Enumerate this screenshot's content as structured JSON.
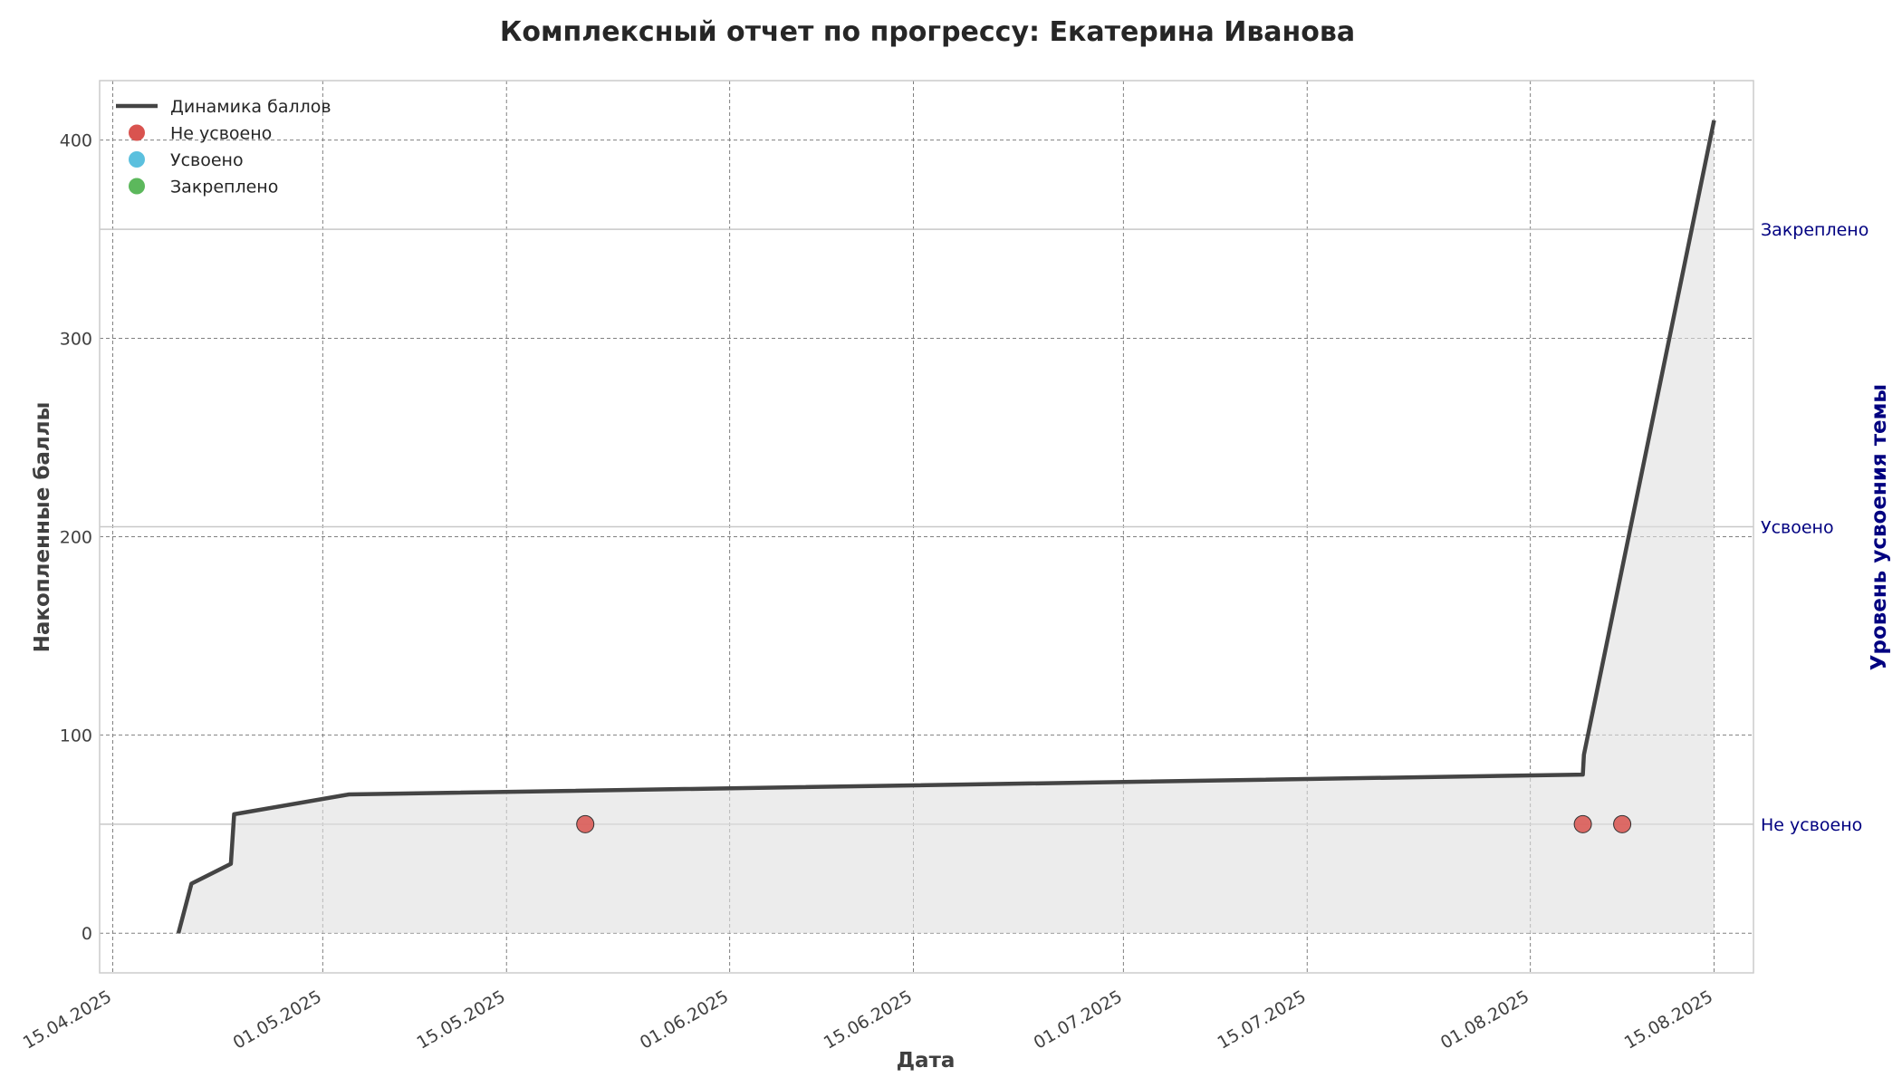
{
  "chart_data": {
    "type": "line",
    "title": "Комплексный отчет по прогрессу: Екатерина Иванова",
    "xlabel": "Дата",
    "ylabel": "Накопленные баллы",
    "y2label": "Уровень усвоения темы",
    "xlim": [
      "2025-04-14",
      "2025-08-18"
    ],
    "ylim": [
      -20,
      430
    ],
    "grid": true,
    "legend_position": "top-left",
    "x_ticks": [
      "15.04.2025",
      "01.05.2025",
      "15.05.2025",
      "01.06.2025",
      "15.06.2025",
      "01.07.2025",
      "15.07.2025",
      "01.08.2025",
      "15.08.2025"
    ],
    "y_ticks": [
      0,
      100,
      200,
      300,
      400
    ],
    "y2_levels": [
      {
        "label": "Не усвоено",
        "y": 55
      },
      {
        "label": "Усвоено",
        "y": 205
      },
      {
        "label": "Закреплено",
        "y": 355
      }
    ],
    "series": [
      {
        "name": "Динамика баллов",
        "kind": "line",
        "color": "#444444",
        "points": [
          {
            "x": "2025-04-20 00:00",
            "y": 0
          },
          {
            "x": "2025-04-21 00:00",
            "y": 25
          },
          {
            "x": "2025-04-24 00:00",
            "y": 35
          },
          {
            "x": "2025-04-24 06:00",
            "y": 60
          },
          {
            "x": "2025-05-03 00:00",
            "y": 70
          },
          {
            "x": "2025-08-05 00:00",
            "y": 80
          },
          {
            "x": "2025-08-05 02:00",
            "y": 90
          },
          {
            "x": "2025-08-15 00:00",
            "y": 410
          }
        ]
      },
      {
        "name": "Не усвоено",
        "kind": "scatter",
        "color": "#d9534f",
        "points": [
          {
            "x": "2025-05-21",
            "y": 55
          },
          {
            "x": "2025-08-05",
            "y": 55
          },
          {
            "x": "2025-08-08",
            "y": 55
          }
        ]
      },
      {
        "name": "Усвоено",
        "kind": "scatter",
        "color": "#5bc0de",
        "points": []
      },
      {
        "name": "Закреплено",
        "kind": "scatter",
        "color": "#5cb85c",
        "points": []
      }
    ]
  }
}
